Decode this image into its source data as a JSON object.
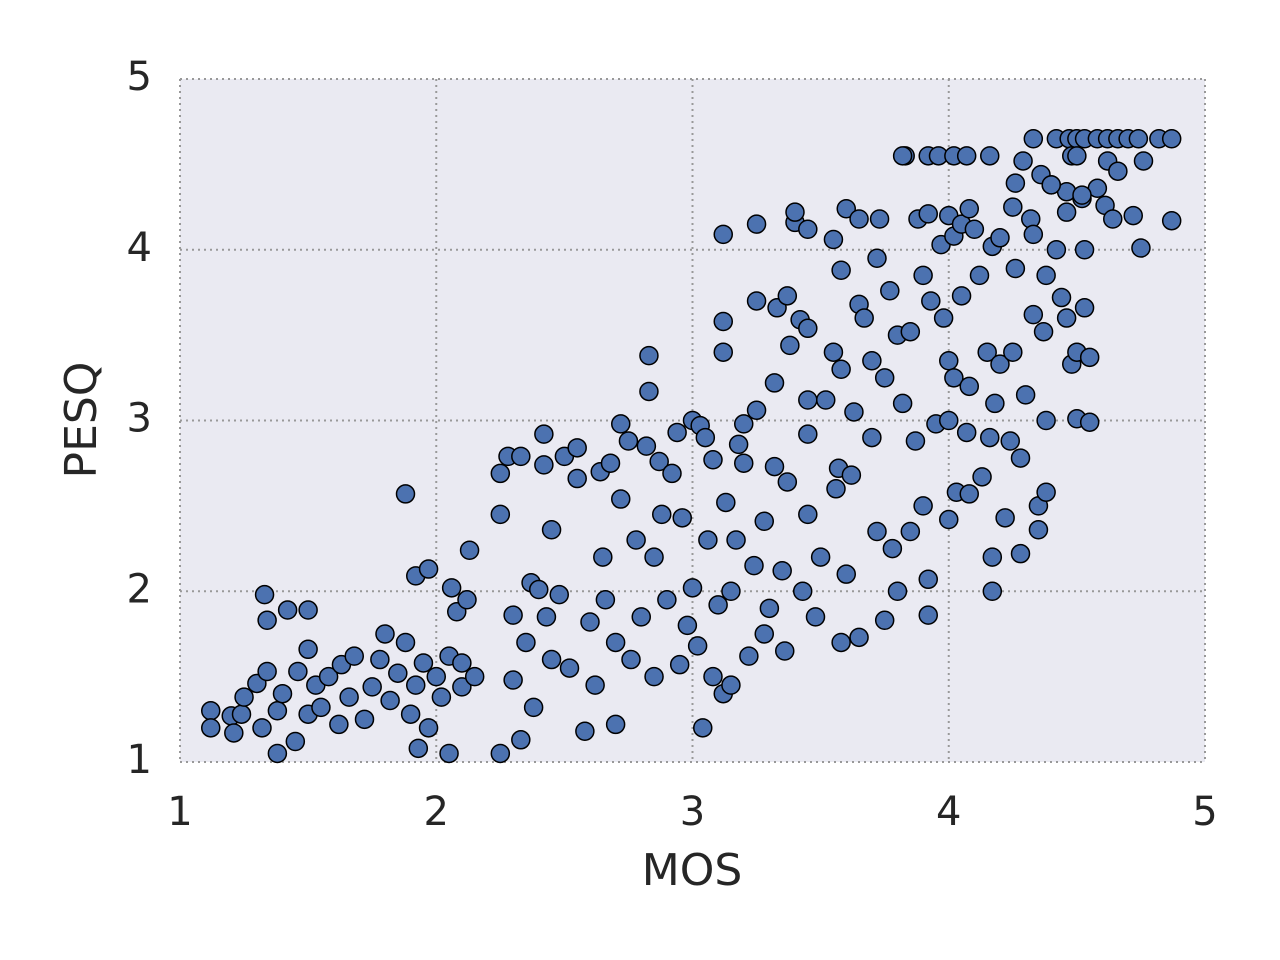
{
  "chart_data": {
    "type": "scatter",
    "xlabel": "MOS",
    "ylabel": "PESQ",
    "color": "#4c72b0",
    "edgecolor": "#000000",
    "grid": true,
    "xlim": [
      1,
      5
    ],
    "ylim": [
      1,
      5
    ],
    "xticks": [
      1,
      2,
      3,
      4,
      5
    ],
    "yticks": [
      1,
      2,
      3,
      4,
      5
    ],
    "x": [
      4.33,
      4.42,
      4.47,
      4.5,
      4.53,
      4.58,
      4.62,
      4.66,
      4.7,
      4.74,
      4.82,
      4.87,
      3.83,
      3.92,
      3.96,
      4.02,
      4.07,
      4.16,
      4.48,
      4.5,
      4.29,
      4.62,
      4.76,
      4.26,
      4.36,
      4.4,
      4.46,
      4.52,
      4.58,
      4.66,
      4.61,
      4.64,
      4.72,
      4.87,
      4.75,
      1.12,
      1.12,
      1.2,
      1.21,
      1.24,
      1.25,
      1.3,
      1.32,
      1.34,
      1.34,
      1.33,
      1.38,
      1.38,
      1.4,
      1.42,
      1.45,
      1.46,
      1.5,
      1.5,
      1.5,
      1.53,
      1.55,
      1.58,
      1.62,
      1.63,
      1.66,
      1.68,
      1.72,
      1.75,
      1.78,
      1.8,
      1.82,
      1.85,
      1.88,
      1.88,
      1.9,
      1.92,
      1.92,
      1.93,
      1.95,
      1.97,
      1.97,
      2.0,
      2.02,
      2.05,
      2.05,
      2.06,
      2.08,
      2.1,
      2.1,
      2.12,
      2.13,
      2.15,
      2.25,
      2.25,
      2.25,
      2.28,
      2.3,
      2.3,
      2.33,
      2.33,
      2.35,
      2.37,
      2.38,
      2.4,
      2.42,
      2.42,
      2.43,
      2.45,
      2.45,
      2.48,
      2.5,
      2.52,
      2.55,
      2.55,
      2.58,
      2.6,
      2.62,
      2.64,
      2.65,
      2.66,
      2.68,
      2.7,
      2.7,
      2.72,
      2.72,
      2.75,
      2.76,
      2.78,
      2.8,
      2.82,
      2.83,
      2.83,
      2.85,
      2.85,
      2.87,
      2.88,
      2.9,
      2.92,
      2.94,
      2.95,
      2.96,
      2.98,
      3.0,
      3.0,
      3.02,
      3.03,
      3.04,
      3.05,
      3.06,
      3.08,
      3.08,
      3.1,
      3.12,
      3.12,
      3.12,
      3.12,
      3.13,
      3.15,
      3.15,
      3.17,
      3.18,
      3.2,
      3.2,
      3.22,
      3.24,
      3.25,
      3.25,
      3.25,
      3.28,
      3.28,
      3.3,
      3.32,
      3.32,
      3.33,
      3.35,
      3.36,
      3.37,
      3.37,
      3.38,
      3.4,
      3.4,
      3.42,
      3.43,
      3.45,
      3.45,
      3.45,
      3.45,
      3.45,
      3.48,
      3.5,
      3.52,
      3.55,
      3.55,
      3.56,
      3.57,
      3.58,
      3.58,
      3.58,
      3.6,
      3.6,
      3.62,
      3.63,
      3.65,
      3.65,
      3.65,
      3.67,
      3.7,
      3.7,
      3.72,
      3.72,
      3.73,
      3.75,
      3.75,
      3.77,
      3.78,
      3.8,
      3.8,
      3.82,
      3.82,
      3.85,
      3.85,
      3.87,
      3.88,
      3.9,
      3.9,
      3.92,
      3.92,
      3.92,
      3.93,
      3.95,
      3.97,
      3.98,
      4.0,
      4.0,
      4.0,
      4.0,
      4.02,
      4.02,
      4.03,
      4.05,
      4.05,
      4.07,
      4.08,
      4.08,
      4.08,
      4.1,
      4.12,
      4.13,
      4.15,
      4.16,
      4.17,
      4.17,
      4.17,
      4.18,
      4.2,
      4.2,
      4.22,
      4.24,
      4.25,
      4.25,
      4.26,
      4.28,
      4.28,
      4.3,
      4.32,
      4.33,
      4.33,
      4.35,
      4.35,
      4.37,
      4.38,
      4.38,
      4.38,
      4.4,
      4.42,
      4.44,
      4.46,
      4.46,
      4.48,
      4.5,
      4.5,
      4.52,
      4.53,
      4.53,
      4.55,
      4.55
    ],
    "y": [
      4.65,
      4.65,
      4.65,
      4.65,
      4.65,
      4.65,
      4.65,
      4.65,
      4.65,
      4.65,
      4.65,
      4.65,
      4.55,
      4.55,
      4.55,
      4.55,
      4.55,
      4.55,
      4.55,
      4.55,
      4.52,
      4.52,
      4.52,
      4.39,
      4.44,
      4.38,
      4.34,
      4.3,
      4.36,
      4.46,
      4.26,
      4.18,
      4.2,
      4.17,
      4.01,
      1.3,
      1.2,
      1.27,
      1.17,
      1.28,
      1.38,
      1.46,
      1.2,
      1.53,
      1.83,
      1.98,
      1.05,
      1.3,
      1.4,
      1.89,
      1.12,
      1.53,
      1.89,
      1.66,
      1.28,
      1.45,
      1.32,
      1.5,
      1.22,
      1.57,
      1.38,
      1.62,
      1.25,
      1.44,
      1.6,
      1.75,
      1.36,
      1.52,
      1.7,
      2.57,
      1.28,
      1.45,
      2.09,
      1.08,
      1.58,
      2.13,
      1.2,
      1.5,
      1.38,
      1.05,
      1.62,
      2.02,
      1.88,
      1.44,
      1.58,
      1.95,
      2.24,
      1.5,
      1.05,
      2.69,
      2.45,
      2.79,
      1.48,
      1.86,
      2.79,
      1.13,
      1.7,
      2.05,
      1.32,
      2.01,
      2.92,
      2.74,
      1.85,
      1.6,
      2.36,
      1.98,
      2.79,
      1.55,
      2.84,
      2.66,
      1.18,
      1.82,
      1.45,
      2.7,
      2.2,
      1.95,
      2.75,
      1.22,
      1.7,
      2.98,
      2.54,
      2.88,
      1.6,
      2.3,
      1.85,
      2.85,
      3.38,
      3.17,
      1.5,
      2.2,
      2.76,
      2.45,
      1.95,
      2.69,
      2.93,
      1.57,
      2.43,
      1.8,
      3.0,
      2.02,
      1.68,
      2.97,
      1.2,
      2.9,
      2.3,
      1.5,
      2.77,
      1.92,
      1.4,
      3.58,
      3.4,
      4.09,
      2.52,
      1.45,
      2.0,
      2.3,
      2.86,
      2.98,
      2.75,
      1.62,
      2.15,
      3.06,
      3.7,
      4.15,
      1.75,
      2.41,
      1.9,
      2.73,
      3.22,
      3.66,
      2.12,
      1.65,
      3.73,
      2.64,
      3.44,
      4.16,
      4.22,
      3.59,
      2.0,
      3.54,
      3.12,
      2.92,
      2.45,
      4.12,
      1.85,
      2.2,
      3.12,
      3.4,
      4.06,
      2.6,
      2.72,
      1.7,
      3.88,
      3.3,
      4.24,
      2.1,
      2.68,
      3.05,
      3.68,
      1.73,
      4.18,
      3.6,
      3.35,
      2.9,
      2.35,
      3.95,
      4.18,
      3.25,
      1.83,
      3.76,
      2.25,
      2.0,
      3.5,
      3.1,
      4.55,
      3.52,
      2.35,
      2.88,
      4.18,
      2.5,
      3.85,
      2.07,
      1.86,
      4.21,
      3.7,
      2.98,
      4.03,
      3.6,
      3.0,
      2.42,
      3.35,
      4.2,
      4.08,
      3.25,
      2.58,
      3.73,
      4.15,
      2.93,
      3.2,
      4.24,
      2.57,
      4.12,
      3.85,
      2.67,
      3.4,
      2.9,
      2.2,
      2.0,
      4.02,
      3.1,
      3.33,
      4.07,
      2.43,
      2.88,
      3.4,
      4.25,
      3.89,
      2.78,
      2.22,
      3.15,
      4.18,
      4.09,
      3.62,
      2.36,
      2.5,
      3.52,
      3.0,
      3.85,
      2.58,
      4.38,
      4.0,
      3.72,
      4.22,
      3.6,
      3.33,
      3.4,
      3.01,
      4.32,
      3.66,
      4.0,
      2.99,
      3.37
    ]
  }
}
